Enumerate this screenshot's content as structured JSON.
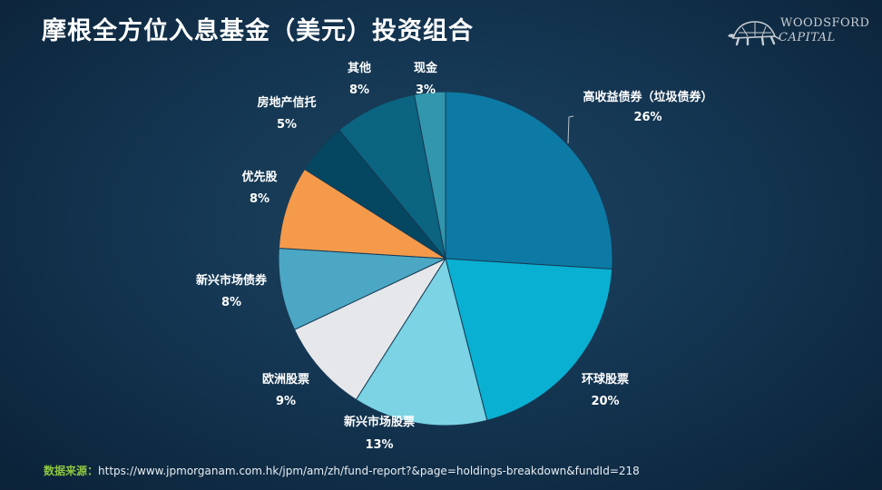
{
  "title": "摩根全方位入息基金（美元）投资组合",
  "logo": {
    "line1": "WOODSFORD",
    "line2": "CAPITAL",
    "icon": "turtle-icon"
  },
  "source": {
    "label": "数据来源：",
    "url": "https://www.jpmorganam.com.hk/jpm/am/zh/fund-report?&page=holdings-breakdown&fundId=218"
  },
  "chart_data": {
    "type": "pie",
    "title": "",
    "slices": [
      {
        "label": "高收益债券（垃圾债券）",
        "value": 26,
        "display": "26%",
        "color": "#0c7aa4"
      },
      {
        "label": "环球股票",
        "value": 20,
        "display": "20%",
        "color": "#0ab0d2"
      },
      {
        "label": "新兴市场股票",
        "value": 13,
        "display": "13%",
        "color": "#7bd3e4"
      },
      {
        "label": "欧洲股票",
        "value": 9,
        "display": "9%",
        "color": "#e5e7ea"
      },
      {
        "label": "新兴市场债券",
        "value": 8,
        "display": "8%",
        "color": "#4ba7c4"
      },
      {
        "label": "优先股",
        "value": 8,
        "display": "8%",
        "color": "#f59a4a"
      },
      {
        "label": "房地产信托",
        "value": 5,
        "display": "5%",
        "color": "#054660"
      },
      {
        "label": "其他",
        "value": 8,
        "display": "8%",
        "color": "#0b6480"
      },
      {
        "label": "现金",
        "value": 3,
        "display": "3%",
        "color": "#3296ad"
      }
    ]
  }
}
